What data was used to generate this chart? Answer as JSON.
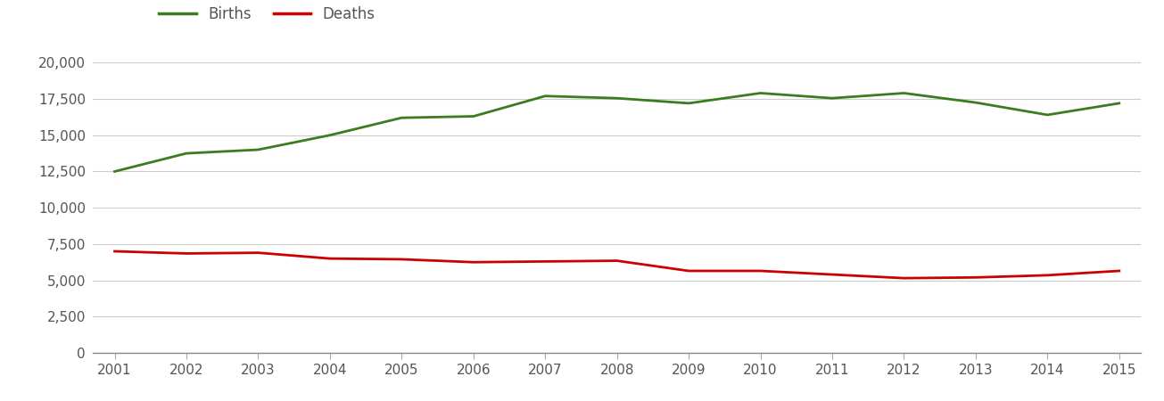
{
  "years": [
    2001,
    2002,
    2003,
    2004,
    2005,
    2006,
    2007,
    2008,
    2009,
    2010,
    2011,
    2012,
    2013,
    2014,
    2015
  ],
  "births": [
    12500,
    13750,
    14000,
    15000,
    16200,
    16300,
    17700,
    17550,
    17200,
    17900,
    17550,
    17900,
    17250,
    16400,
    17200
  ],
  "deaths": [
    7000,
    6850,
    6900,
    6500,
    6450,
    6250,
    6300,
    6350,
    5650,
    5650,
    5400,
    5150,
    5200,
    5350,
    5650
  ],
  "births_color": "#3a7d1e",
  "deaths_color": "#cc0000",
  "line_width": 2.0,
  "background_color": "#ffffff",
  "grid_color": "#cccccc",
  "ylim": [
    0,
    21000
  ],
  "yticks": [
    0,
    2500,
    5000,
    7500,
    10000,
    12500,
    15000,
    17500,
    20000
  ],
  "legend_births": "Births",
  "legend_deaths": "Deaths",
  "tick_color": "#555555",
  "tick_fontsize": 11
}
